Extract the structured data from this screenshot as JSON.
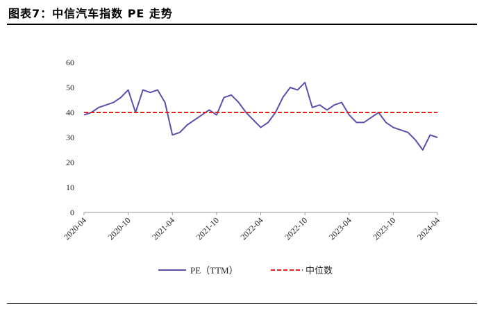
{
  "figure_title": "图表7：中信汽车指数 PE 走势",
  "chart_data": {
    "type": "line",
    "xlabel": "",
    "ylabel": "",
    "ylim": [
      0,
      60
    ],
    "yticks": [
      0,
      10,
      20,
      30,
      40,
      50,
      60
    ],
    "x_tick_labels": [
      "2020-04",
      "2020-10",
      "2021-04",
      "2021-10",
      "2022-04",
      "2022-10",
      "2023-04",
      "2023-10",
      "2024-04"
    ],
    "xlim_months": [
      "2020-04",
      "2024-04"
    ],
    "grid": false,
    "legend_position": "bottom",
    "series": [
      {
        "name": "PE（TTM）",
        "color": "#5b4ea8",
        "style": "solid",
        "points": [
          [
            "2020-04",
            39
          ],
          [
            "2020-05",
            40
          ],
          [
            "2020-06",
            42
          ],
          [
            "2020-07",
            43
          ],
          [
            "2020-08",
            44
          ],
          [
            "2020-09",
            46
          ],
          [
            "2020-10",
            49
          ],
          [
            "2020-11",
            40
          ],
          [
            "2020-12",
            49
          ],
          [
            "2021-01",
            48
          ],
          [
            "2021-02",
            49
          ],
          [
            "2021-03",
            44
          ],
          [
            "2021-04",
            31
          ],
          [
            "2021-05",
            32
          ],
          [
            "2021-06",
            35
          ],
          [
            "2021-07",
            37
          ],
          [
            "2021-08",
            39
          ],
          [
            "2021-09",
            41
          ],
          [
            "2021-10",
            39
          ],
          [
            "2021-11",
            46
          ],
          [
            "2021-12",
            47
          ],
          [
            "2022-01",
            44
          ],
          [
            "2022-02",
            40
          ],
          [
            "2022-03",
            37
          ],
          [
            "2022-04",
            34
          ],
          [
            "2022-05",
            36
          ],
          [
            "2022-06",
            40
          ],
          [
            "2022-07",
            46
          ],
          [
            "2022-08",
            50
          ],
          [
            "2022-09",
            49
          ],
          [
            "2022-10",
            52
          ],
          [
            "2022-11",
            42
          ],
          [
            "2022-12",
            43
          ],
          [
            "2023-01",
            41
          ],
          [
            "2023-02",
            43
          ],
          [
            "2023-03",
            44
          ],
          [
            "2023-04",
            39
          ],
          [
            "2023-05",
            36
          ],
          [
            "2023-06",
            36
          ],
          [
            "2023-07",
            38
          ],
          [
            "2023-08",
            40
          ],
          [
            "2023-09",
            36
          ],
          [
            "2023-10",
            34
          ],
          [
            "2023-11",
            33
          ],
          [
            "2023-12",
            32
          ],
          [
            "2024-01",
            29
          ],
          [
            "2024-02",
            25
          ],
          [
            "2024-03",
            31
          ],
          [
            "2024-04",
            30
          ]
        ]
      },
      {
        "name": "中位数",
        "color": "#e8201d",
        "style": "dashed",
        "points": [
          [
            "2020-04",
            40
          ],
          [
            "2024-04",
            40
          ]
        ]
      }
    ]
  }
}
